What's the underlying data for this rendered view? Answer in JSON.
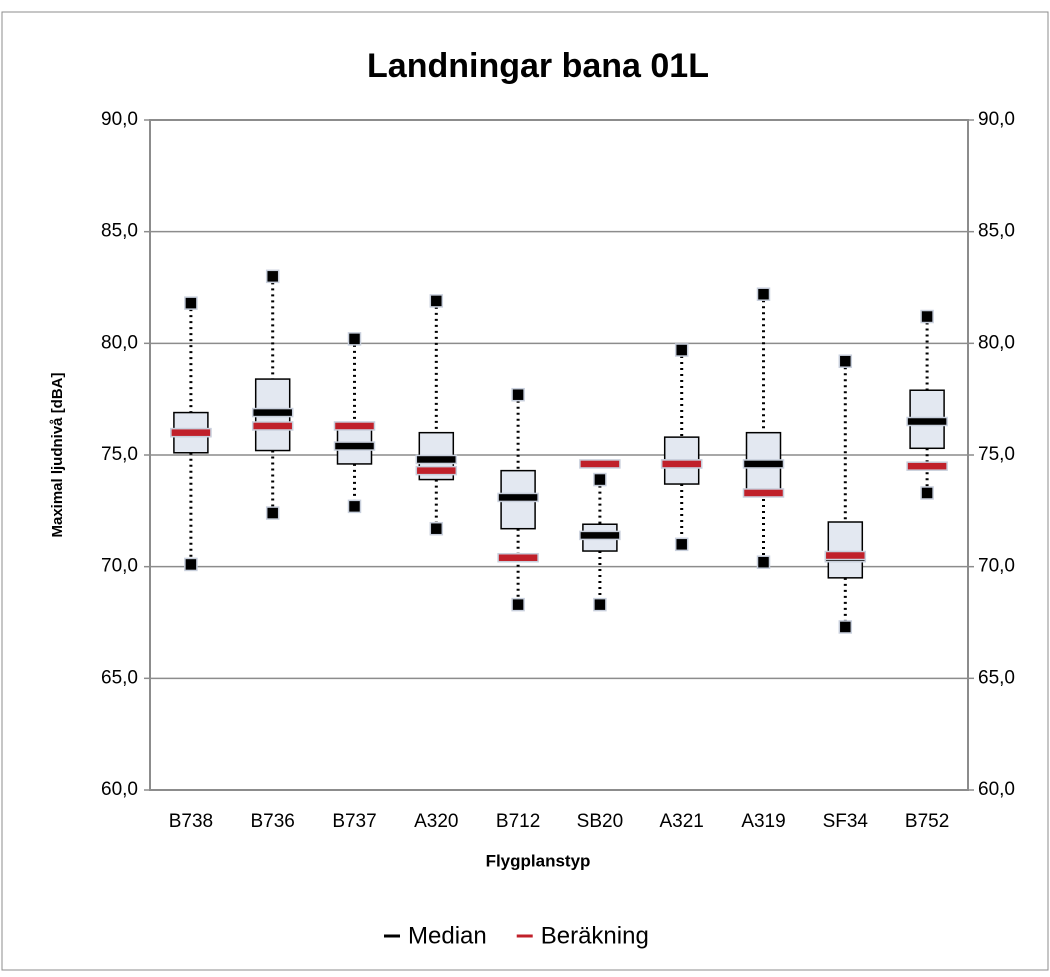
{
  "chart_data": {
    "type": "box",
    "title": "Landningar bana 01L",
    "x_label": "Flygplanstyp",
    "y_label": "Maximal ljudnivå [dBA]",
    "categories": [
      "B738",
      "B736",
      "B737",
      "A320",
      "B712",
      "SB20",
      "A321",
      "A319",
      "SF34",
      "B752"
    ],
    "min": [
      70.1,
      72.4,
      72.7,
      71.7,
      68.3,
      68.3,
      71.0,
      70.2,
      67.3,
      73.3
    ],
    "q1": [
      75.1,
      75.2,
      74.6,
      73.9,
      71.7,
      70.7,
      73.7,
      73.3,
      69.5,
      75.3
    ],
    "q3": [
      76.9,
      78.4,
      76.3,
      76.0,
      74.3,
      71.9,
      75.8,
      76.0,
      72.0,
      77.9
    ],
    "max": [
      81.8,
      83.0,
      80.2,
      81.9,
      77.7,
      73.9,
      79.7,
      82.2,
      79.2,
      81.2
    ],
    "box_color": "#e3e8f1",
    "series": [
      {
        "name": "Median",
        "color": "#000000",
        "values": [
          76.0,
          76.9,
          75.4,
          74.8,
          73.1,
          71.4,
          74.6,
          74.6,
          70.4,
          76.5
        ]
      },
      {
        "name": "Beräkning",
        "color": "#c0202a",
        "values": [
          76.0,
          76.3,
          76.3,
          74.3,
          70.4,
          74.6,
          74.6,
          73.3,
          70.5,
          74.5
        ]
      }
    ],
    "ylim": [
      60,
      90
    ],
    "yticks": [
      {
        "value": 60,
        "label": "60,0"
      },
      {
        "value": 65,
        "label": "65,0"
      },
      {
        "value": 70,
        "label": "70,0"
      },
      {
        "value": 75,
        "label": "75,0"
      },
      {
        "value": 80,
        "label": "80,0"
      },
      {
        "value": 85,
        "label": "85,0"
      },
      {
        "value": 90,
        "label": "90,0"
      }
    ],
    "y2lim": [
      60,
      90
    ],
    "y2ticks": [
      {
        "value": 60,
        "label": "60,0"
      },
      {
        "value": 65,
        "label": "65,0"
      },
      {
        "value": 70,
        "label": "70,0"
      },
      {
        "value": 75,
        "label": "75,0"
      },
      {
        "value": 80,
        "label": "80,0"
      },
      {
        "value": 85,
        "label": "85,0"
      },
      {
        "value": 90,
        "label": "90,0"
      }
    ],
    "grid": true,
    "legend": "bottom"
  }
}
